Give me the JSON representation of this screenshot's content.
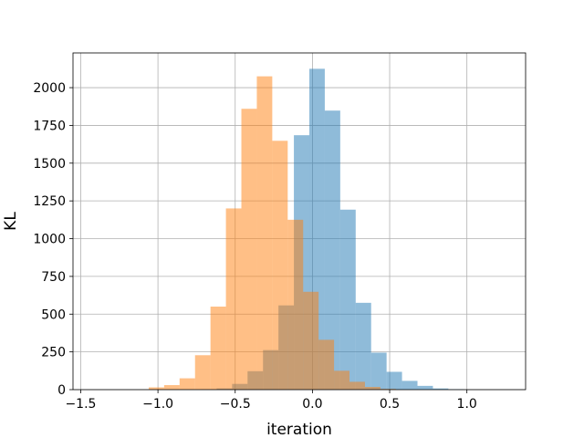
{
  "chart_data": {
    "type": "bar",
    "title": "",
    "xlabel": "iteration",
    "ylabel": "KL",
    "xlim": [
      -1.55,
      1.38
    ],
    "ylim": [
      0,
      2230
    ],
    "grid": true,
    "xticks": [
      -1.5,
      -1.0,
      -0.5,
      0.0,
      0.5,
      1.0
    ],
    "xtick_labels": [
      "−1.5",
      "−1.0",
      "−0.5",
      "0.0",
      "0.5",
      "1.0"
    ],
    "yticks": [
      0,
      250,
      500,
      750,
      1000,
      1250,
      1500,
      1750,
      2000
    ],
    "ytick_labels": [
      "0",
      "250",
      "500",
      "750",
      "1000",
      "1250",
      "1500",
      "1750",
      "2000"
    ],
    "series": [
      {
        "color": "#1f77b4",
        "opacity": 0.5,
        "bins": [
          {
            "x0": -0.72,
            "x1": -0.62,
            "count": 2
          },
          {
            "x0": -0.62,
            "x1": -0.52,
            "count": 8
          },
          {
            "x0": -0.52,
            "x1": -0.42,
            "count": 38
          },
          {
            "x0": -0.42,
            "x1": -0.32,
            "count": 122
          },
          {
            "x0": -0.32,
            "x1": -0.22,
            "count": 262
          },
          {
            "x0": -0.22,
            "x1": -0.12,
            "count": 558
          },
          {
            "x0": -0.12,
            "x1": -0.02,
            "count": 1685
          },
          {
            "x0": -0.02,
            "x1": 0.08,
            "count": 2125
          },
          {
            "x0": 0.08,
            "x1": 0.18,
            "count": 1848
          },
          {
            "x0": 0.18,
            "x1": 0.28,
            "count": 1192
          },
          {
            "x0": 0.28,
            "x1": 0.38,
            "count": 575
          },
          {
            "x0": 0.38,
            "x1": 0.48,
            "count": 245
          },
          {
            "x0": 0.48,
            "x1": 0.58,
            "count": 118
          },
          {
            "x0": 0.58,
            "x1": 0.68,
            "count": 58
          },
          {
            "x0": 0.68,
            "x1": 0.78,
            "count": 25
          },
          {
            "x0": 0.78,
            "x1": 0.88,
            "count": 8
          },
          {
            "x0": 0.88,
            "x1": 0.98,
            "count": 3
          }
        ]
      },
      {
        "color": "#ff7f0e",
        "opacity": 0.5,
        "bins": [
          {
            "x0": -1.06,
            "x1": -0.96,
            "count": 15
          },
          {
            "x0": -0.96,
            "x1": -0.86,
            "count": 30
          },
          {
            "x0": -0.86,
            "x1": -0.76,
            "count": 75
          },
          {
            "x0": -0.76,
            "x1": -0.66,
            "count": 228
          },
          {
            "x0": -0.66,
            "x1": -0.56,
            "count": 550
          },
          {
            "x0": -0.56,
            "x1": -0.46,
            "count": 1200
          },
          {
            "x0": -0.46,
            "x1": -0.36,
            "count": 1860
          },
          {
            "x0": -0.36,
            "x1": -0.26,
            "count": 2075
          },
          {
            "x0": -0.26,
            "x1": -0.16,
            "count": 1648
          },
          {
            "x0": -0.16,
            "x1": -0.06,
            "count": 1125
          },
          {
            "x0": -0.06,
            "x1": 0.04,
            "count": 648
          },
          {
            "x0": 0.04,
            "x1": 0.14,
            "count": 330
          },
          {
            "x0": 0.14,
            "x1": 0.24,
            "count": 125
          },
          {
            "x0": 0.24,
            "x1": 0.34,
            "count": 52
          },
          {
            "x0": 0.34,
            "x1": 0.44,
            "count": 18
          },
          {
            "x0": 0.44,
            "x1": 0.54,
            "count": 5
          }
        ]
      }
    ]
  }
}
